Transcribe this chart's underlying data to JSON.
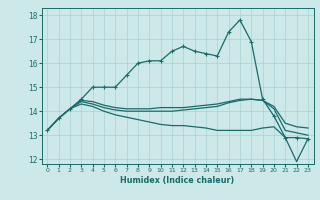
{
  "xlabel": "Humidex (Indice chaleur)",
  "ylabel": "",
  "background_color": "#cce8e8",
  "grid_color": "#aad0d0",
  "line_color": "#1a6b6b",
  "xlim": [
    -0.5,
    23.5
  ],
  "ylim": [
    11.8,
    18.3
  ],
  "yticks": [
    12,
    13,
    14,
    15,
    16,
    17,
    18
  ],
  "xticks": [
    0,
    1,
    2,
    3,
    4,
    5,
    6,
    7,
    8,
    9,
    10,
    11,
    12,
    13,
    14,
    15,
    16,
    17,
    18,
    19,
    20,
    21,
    22,
    23
  ],
  "series": {
    "max": [
      13.2,
      13.7,
      14.1,
      14.5,
      15.0,
      15.0,
      15.0,
      15.5,
      16.0,
      16.1,
      16.1,
      16.5,
      16.7,
      16.5,
      16.4,
      16.3,
      17.3,
      17.8,
      16.9,
      14.5,
      13.8,
      12.9,
      12.9,
      12.85
    ],
    "mean": [
      13.2,
      13.7,
      14.1,
      14.45,
      14.4,
      14.25,
      14.15,
      14.1,
      14.1,
      14.1,
      14.15,
      14.15,
      14.15,
      14.2,
      14.25,
      14.3,
      14.4,
      14.5,
      14.5,
      14.45,
      14.2,
      13.5,
      13.35,
      13.3
    ],
    "min": [
      13.2,
      13.7,
      14.1,
      14.3,
      14.2,
      14.0,
      13.85,
      13.75,
      13.65,
      13.55,
      13.45,
      13.4,
      13.4,
      13.35,
      13.3,
      13.2,
      13.2,
      13.2,
      13.2,
      13.3,
      13.35,
      12.9,
      11.9,
      12.85
    ],
    "extra": [
      13.2,
      13.7,
      14.1,
      14.4,
      14.3,
      14.15,
      14.05,
      14.0,
      14.0,
      14.0,
      14.0,
      14.0,
      14.05,
      14.1,
      14.15,
      14.2,
      14.35,
      14.45,
      14.5,
      14.45,
      14.1,
      13.2,
      13.1,
      13.0
    ]
  }
}
